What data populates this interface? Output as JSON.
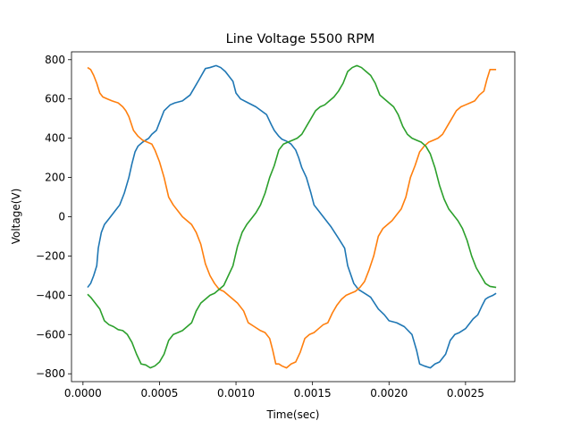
{
  "chart_data": {
    "type": "line",
    "title": "Line Voltage 5500 RPM",
    "xlabel": "Time(sec)",
    "ylabel": "Voltage(V)",
    "xlim": [
      -7.5e-05,
      0.002822
    ],
    "ylim": [
      -840,
      840
    ],
    "grid": false,
    "legend": "none",
    "xticks": [
      0.0,
      0.0005,
      0.001,
      0.0015,
      0.002,
      0.0025
    ],
    "xtick_labels": [
      "0.0000",
      "0.0005",
      "0.0010",
      "0.0015",
      "0.0020",
      "0.0025"
    ],
    "yticks": [
      -800,
      -600,
      -400,
      -200,
      0,
      200,
      400,
      600,
      800
    ],
    "ytick_labels": [
      "−800",
      "−600",
      "−400",
      "−200",
      "0",
      "200",
      "400",
      "600",
      "800"
    ],
    "series": [
      {
        "color": "#1f77b4",
        "x": [
          3e-05,
          5e-05,
          7e-05,
          9e-05,
          0.0001,
          0.00012,
          0.00014,
          0.00017,
          0.0002,
          0.00024,
          0.00027,
          0.0003,
          0.00032,
          0.00034,
          0.00036,
          0.00039,
          0.00041,
          0.00043,
          0.00045,
          0.00048,
          0.0005,
          0.00053,
          0.00057,
          0.0006,
          0.00065,
          0.0007,
          0.00073,
          0.00076,
          0.0008,
          0.00083,
          0.00087,
          0.0009,
          0.00093,
          0.00095,
          0.00098,
          0.001,
          0.00103,
          0.00108,
          0.00113,
          0.0012,
          0.00123,
          0.00125,
          0.00128,
          0.0013,
          0.00133,
          0.00136,
          0.00139,
          0.00141,
          0.00143,
          0.00146,
          0.00149,
          0.00151,
          0.00154,
          0.00157,
          0.00162,
          0.00167,
          0.00171,
          0.00173,
          0.00177,
          0.0018,
          0.00183,
          0.00186,
          0.00188,
          0.00193,
          0.00197,
          0.002,
          0.00205,
          0.0021,
          0.00215,
          0.00218,
          0.0022,
          0.00223,
          0.00227,
          0.0023,
          0.00233,
          0.00237,
          0.0024,
          0.00243,
          0.00246,
          0.0025,
          0.00255,
          0.00258,
          0.00261,
          0.00263,
          0.00265,
          0.00268,
          0.0027
        ],
        "y": [
          -360,
          -340,
          -300,
          -250,
          -160,
          -80,
          -40,
          -10,
          20,
          60,
          120,
          200,
          270,
          330,
          360,
          380,
          390,
          400,
          420,
          440,
          480,
          540,
          570,
          580,
          590,
          620,
          660,
          700,
          755,
          760,
          770,
          760,
          740,
          720,
          690,
          630,
          600,
          580,
          560,
          520,
          470,
          440,
          410,
          395,
          385,
          370,
          340,
          300,
          250,
          200,
          120,
          60,
          30,
          0,
          -50,
          -110,
          -160,
          -250,
          -340,
          -370,
          -385,
          -400,
          -410,
          -470,
          -500,
          -530,
          -540,
          -560,
          -600,
          -680,
          -750,
          -760,
          -770,
          -750,
          -740,
          -700,
          -630,
          -600,
          -590,
          -570,
          -520,
          -500,
          -450,
          -420,
          -410,
          -400,
          -390
        ]
      },
      {
        "color": "#ff7f0e",
        "x": [
          3e-05,
          5e-05,
          7e-05,
          9e-05,
          0.00011,
          0.00013,
          0.00016,
          0.00019,
          0.00023,
          0.00026,
          0.00028,
          0.0003,
          0.00033,
          0.00036,
          0.00039,
          0.00042,
          0.00045,
          0.00047,
          0.0005,
          0.00053,
          0.00056,
          0.00059,
          0.00062,
          0.00065,
          0.00068,
          0.00071,
          0.00074,
          0.00077,
          0.0008,
          0.00083,
          0.00086,
          0.00089,
          0.00092,
          0.00095,
          0.00098,
          0.00101,
          0.00105,
          0.00108,
          0.00112,
          0.00116,
          0.00119,
          0.00122,
          0.00124,
          0.00126,
          0.00128,
          0.0013,
          0.00133,
          0.00136,
          0.00139,
          0.00142,
          0.00145,
          0.00148,
          0.00151,
          0.00154,
          0.00157,
          0.0016,
          0.00163,
          0.00166,
          0.00169,
          0.00172,
          0.00175,
          0.00178,
          0.00181,
          0.00184,
          0.00187,
          0.0019,
          0.00193,
          0.00196,
          0.00199,
          0.00202,
          0.00205,
          0.00208,
          0.00211,
          0.00214,
          0.00217,
          0.0022,
          0.00223,
          0.00226,
          0.00229,
          0.00232,
          0.00235,
          0.00238,
          0.00241,
          0.00244,
          0.00247,
          0.0025,
          0.00253,
          0.00256,
          0.00259,
          0.00262,
          0.00264,
          0.00266,
          0.0027
        ],
        "y": [
          760,
          750,
          720,
          680,
          630,
          610,
          600,
          590,
          580,
          560,
          540,
          510,
          440,
          410,
          390,
          380,
          370,
          340,
          280,
          200,
          100,
          60,
          30,
          0,
          -20,
          -40,
          -80,
          -140,
          -240,
          -300,
          -340,
          -370,
          -380,
          -400,
          -420,
          -440,
          -480,
          -540,
          -560,
          -580,
          -590,
          -620,
          -680,
          -750,
          -750,
          -760,
          -770,
          -750,
          -740,
          -690,
          -620,
          -600,
          -590,
          -570,
          -550,
          -540,
          -490,
          -450,
          -420,
          -400,
          -390,
          -380,
          -360,
          -330,
          -270,
          -200,
          -100,
          -60,
          -40,
          -20,
          10,
          40,
          100,
          200,
          260,
          330,
          360,
          380,
          390,
          400,
          420,
          460,
          500,
          540,
          560,
          570,
          580,
          590,
          620,
          640,
          700,
          750,
          750
        ]
      },
      {
        "color": "#2ca02c",
        "x": [
          3e-05,
          5e-05,
          8e-05,
          0.00011,
          0.00014,
          0.00017,
          0.0002,
          0.00023,
          0.00026,
          0.00029,
          0.00032,
          0.00035,
          0.00038,
          0.00041,
          0.00044,
          0.00047,
          0.0005,
          0.00053,
          0.00056,
          0.00059,
          0.00062,
          0.00065,
          0.00068,
          0.00071,
          0.00074,
          0.00077,
          0.0008,
          0.00083,
          0.00086,
          0.00089,
          0.00092,
          0.00095,
          0.00098,
          0.00101,
          0.00104,
          0.00107,
          0.0011,
          0.00113,
          0.00116,
          0.00119,
          0.00122,
          0.00125,
          0.00128,
          0.00131,
          0.00134,
          0.00137,
          0.0014,
          0.00143,
          0.00146,
          0.00149,
          0.00152,
          0.00155,
          0.00158,
          0.00161,
          0.00164,
          0.00167,
          0.0017,
          0.00173,
          0.00176,
          0.00179,
          0.00182,
          0.00185,
          0.00188,
          0.00191,
          0.00194,
          0.00197,
          0.002,
          0.00203,
          0.00206,
          0.00209,
          0.00212,
          0.00215,
          0.00218,
          0.00221,
          0.00224,
          0.00227,
          0.0023,
          0.00233,
          0.00236,
          0.00239,
          0.00242,
          0.00245,
          0.00248,
          0.00251,
          0.00254,
          0.00257,
          0.0026,
          0.00263,
          0.00266,
          0.0027
        ],
        "y": [
          -395,
          -410,
          -440,
          -470,
          -530,
          -550,
          -560,
          -575,
          -580,
          -600,
          -640,
          -700,
          -750,
          -755,
          -770,
          -760,
          -740,
          -700,
          -630,
          -600,
          -590,
          -580,
          -560,
          -540,
          -480,
          -440,
          -420,
          -400,
          -390,
          -370,
          -350,
          -300,
          -250,
          -150,
          -80,
          -40,
          -10,
          20,
          60,
          120,
          200,
          260,
          340,
          370,
          380,
          390,
          400,
          420,
          460,
          500,
          540,
          560,
          570,
          590,
          610,
          640,
          680,
          740,
          760,
          770,
          760,
          740,
          720,
          680,
          620,
          600,
          580,
          560,
          520,
          460,
          420,
          400,
          390,
          380,
          360,
          320,
          250,
          160,
          90,
          40,
          10,
          -20,
          -60,
          -120,
          -200,
          -260,
          -300,
          -340,
          -355,
          -360
        ]
      }
    ]
  }
}
